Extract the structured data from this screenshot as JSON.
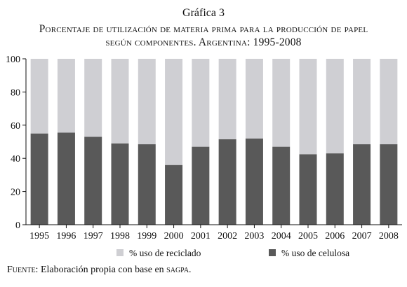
{
  "chart_data": {
    "type": "bar",
    "stacked": true,
    "title": "Gráfica 3",
    "subtitle_line1": "Porcentaje de utilización de materia prima para la producción de papel",
    "subtitle_line2": "según componentes. Argentina: 1995-2008",
    "categories": [
      "1995",
      "1996",
      "1997",
      "1998",
      "1999",
      "2000",
      "2001",
      "2002",
      "2003",
      "2004",
      "2005",
      "2006",
      "2007",
      "2008"
    ],
    "series": [
      {
        "name": "% uso de celulosa",
        "color": "#595959",
        "values": [
          55,
          55.5,
          53,
          49,
          48.5,
          36,
          47,
          51.5,
          52,
          47,
          42.5,
          43,
          48.5,
          48.5
        ]
      },
      {
        "name": "% uso de reciclado",
        "color": "#cfcfd3",
        "values": [
          45,
          44.5,
          47,
          51,
          51.5,
          64,
          53,
          48.5,
          48,
          53,
          57.5,
          57,
          51.5,
          51.5
        ]
      }
    ],
    "ylim": [
      0,
      100
    ],
    "yticks": [
      0,
      20,
      40,
      60,
      80,
      100
    ],
    "grid": false,
    "legend_position": "bottom",
    "xlabel": "",
    "ylabel": ""
  },
  "source": {
    "prefix": "Fuente:",
    "text": "Elaboración propia con base en ",
    "abbr": "sagpa",
    "suffix": "."
  }
}
